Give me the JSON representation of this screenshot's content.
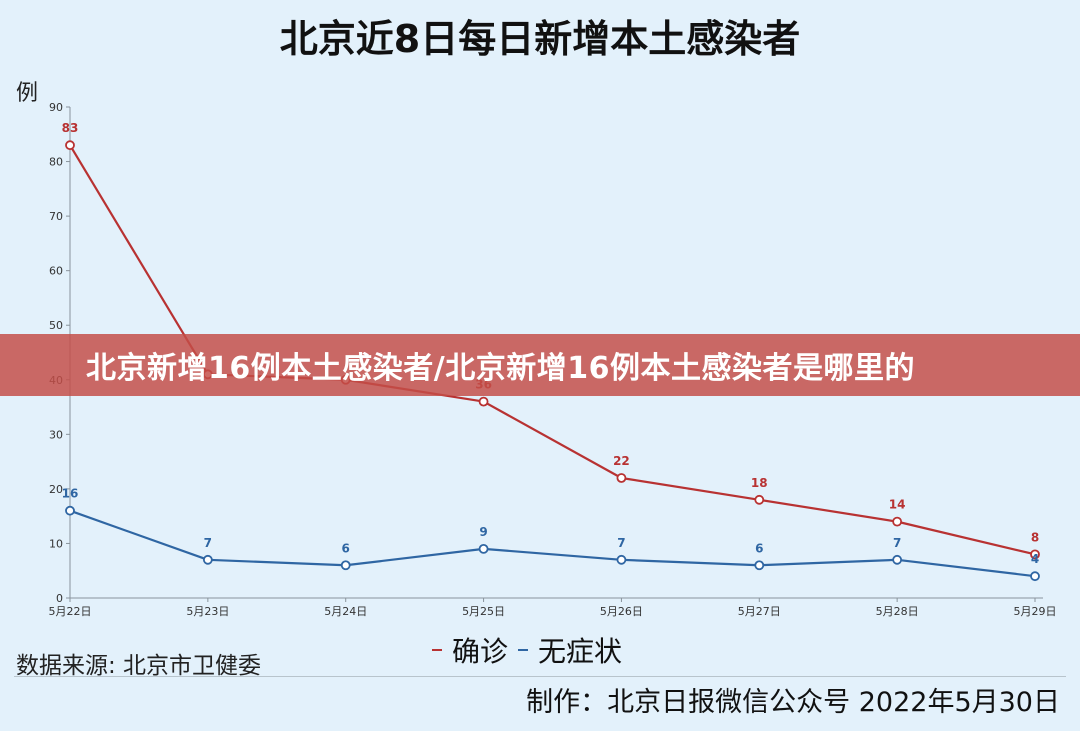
{
  "colors": {
    "confirmed": "#b83232",
    "asymptomatic": "#2f66a3",
    "banner_bg": "#c44e48",
    "background": "#e3f1fb"
  },
  "banner": {
    "text": "北京新增16例本土感染者/北京新增16例本土感染者是哪里的"
  },
  "source": "数据来源: 北京市卫健委",
  "footer": "制作：北京日报微信公众号 2022年5月30日",
  "chart_data": {
    "type": "line",
    "title": "北京近8日每日新增本土感染者",
    "ylabel": "例",
    "xlabel": "",
    "ylim": [
      0,
      90
    ],
    "yticks": [
      0,
      10,
      20,
      30,
      40,
      50,
      60,
      70,
      80,
      90
    ],
    "grid": false,
    "legend_position": "bottom-center",
    "categories": [
      "5月22日",
      "5月23日",
      "5月24日",
      "5月25日",
      "5月26日",
      "5月27日",
      "5月28日",
      "5月29日"
    ],
    "series": [
      {
        "name": "确诊",
        "values": [
          83,
          41,
          40,
          36,
          22,
          18,
          14,
          8
        ]
      },
      {
        "name": "无症状",
        "values": [
          16,
          7,
          6,
          9,
          7,
          6,
          7,
          4
        ]
      }
    ],
    "data_labels": [
      [
        "83",
        "",
        "",
        "36",
        "22",
        "18",
        "14",
        "8"
      ],
      [
        "16",
        "7",
        "6",
        "9",
        "7",
        "6",
        "7",
        "4"
      ]
    ]
  }
}
